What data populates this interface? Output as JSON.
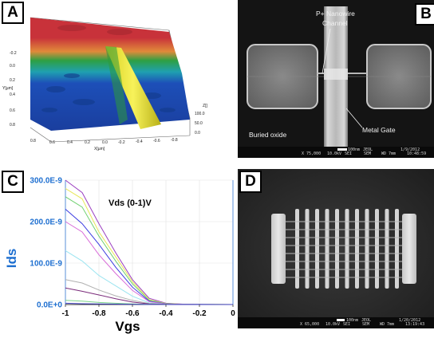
{
  "panels": {
    "a": {
      "tag": "A",
      "y_tick_labels": [
        "-0.2",
        "0.0",
        "0.2",
        "0.4",
        "0.6",
        "0.8"
      ],
      "y_axis_label": "Y[µm]",
      "x_tick_labels": [
        "0.8",
        "0.6",
        "0.4",
        "0.2",
        "0.0",
        "-0.2",
        "-0.4",
        "-0.6",
        "-0.8"
      ],
      "x_axis_label": "X[µm]",
      "z_tick_labels": [
        "0.0",
        "50.0",
        "100.0"
      ],
      "z_axis_label": "Z[]",
      "colors": {
        "high": "#c8323a",
        "mid": "#2ea043",
        "low": "#1d4fb8",
        "wire": "#f2ec2a"
      }
    },
    "b": {
      "tag": "B",
      "label_nanowire": "P+ Nanowire",
      "label_channel": "Channel",
      "label_buried_oxide": "Buried oxide",
      "label_metal_gate": "Metal Gate",
      "footer": {
        "scale_label": "100nm",
        "vendor": "JEOL",
        "date": "1/9/2012",
        "magnification": "X 75,000",
        "voltage": "10.0kV",
        "detector": "SEI",
        "mode": "SEM",
        "wd": "WD 7mm",
        "time": "10:48:59"
      }
    },
    "c": {
      "tag": "C",
      "annotation": "Vds (0-1)V",
      "ylabel": "Ids",
      "xlabel": "Vgs"
    },
    "d": {
      "tag": "D",
      "footer": {
        "scale_label": "100nm",
        "vendor": "JEOL",
        "date": "1/20/2012",
        "magnification": "X 65,000",
        "voltage": "10.0kV",
        "detector": "SEI",
        "mode": "SEM",
        "wd": "WD 7mm",
        "time": "13:19:43"
      }
    }
  },
  "chart_data": {
    "type": "line",
    "xlabel": "Vgs",
    "ylabel": "Ids",
    "xlim": [
      -1,
      0
    ],
    "ylim": [
      0,
      3e-07
    ],
    "x_ticks": [
      -1,
      -0.8,
      -0.6,
      -0.4,
      -0.2,
      0
    ],
    "x_tick_labels": [
      "-1",
      "-0.8",
      "-0.6",
      "-0.4",
      "-0.2",
      "0"
    ],
    "y_ticks": [
      0,
      1e-07,
      2e-07,
      3e-07
    ],
    "y_tick_labels": [
      "0.0E+0",
      "100.0E-9",
      "200.0E-9",
      "300.0E-9"
    ],
    "grid": true,
    "x": [
      -1.0,
      -0.9,
      -0.8,
      -0.7,
      -0.6,
      -0.5,
      -0.4,
      -0.3,
      -0.2,
      -0.1,
      0.0
    ],
    "series": [
      {
        "color": "#9b3fc0",
        "values": [
          3e-07,
          2.7e-07,
          1.95e-07,
          1.25e-07,
          6e-08,
          1.5e-08,
          3e-09,
          1e-09,
          3e-10,
          1e-10,
          0
        ]
      },
      {
        "color": "#e8e85a",
        "values": [
          2.8e-07,
          2.55e-07,
          1.75e-07,
          1.15e-07,
          5.5e-08,
          1.2e-08,
          2.5e-09,
          8e-10,
          2e-10,
          1e-10,
          0
        ]
      },
      {
        "color": "#6fd06f",
        "values": [
          2.6e-07,
          2.35e-07,
          1.65e-07,
          1.05e-07,
          5e-08,
          1e-08,
          2e-09,
          6e-10,
          2e-10,
          1e-10,
          0
        ]
      },
      {
        "color": "#3a3ae0",
        "values": [
          2.3e-07,
          1.95e-07,
          1.45e-07,
          9e-08,
          4.2e-08,
          8e-09,
          1.5e-09,
          5e-10,
          1e-10,
          0,
          0
        ]
      },
      {
        "color": "#d86ad8",
        "values": [
          2e-07,
          1.75e-07,
          1.2e-07,
          7.5e-08,
          3.4e-08,
          7e-09,
          1.2e-09,
          4e-10,
          1e-10,
          0,
          0
        ]
      },
      {
        "color": "#9ae4f0",
        "values": [
          1.3e-07,
          1.05e-07,
          7e-08,
          4.5e-08,
          2e-08,
          4e-09,
          8e-10,
          3e-10,
          1e-10,
          0,
          0
        ]
      },
      {
        "color": "#b0b0b0",
        "values": [
          6e-08,
          5.2e-08,
          3.5e-08,
          2.1e-08,
          1e-08,
          2.5e-09,
          5e-10,
          2e-10,
          0,
          0,
          0
        ]
      },
      {
        "color": "#7a2a7a",
        "values": [
          4e-08,
          3.2e-08,
          2.3e-08,
          1.4e-08,
          6e-09,
          1.5e-09,
          3e-10,
          1e-10,
          0,
          0,
          0
        ]
      },
      {
        "color": "#7bd48a",
        "values": [
          1e-08,
          8e-09,
          5e-09,
          3e-09,
          1.5e-09,
          5e-10,
          1e-10,
          0,
          0,
          0,
          0
        ]
      },
      {
        "color": "#4040c0",
        "values": [
          3e-09,
          2e-09,
          1.5e-09,
          1e-09,
          5e-10,
          1e-10,
          0,
          0,
          0,
          0,
          0
        ]
      }
    ]
  }
}
